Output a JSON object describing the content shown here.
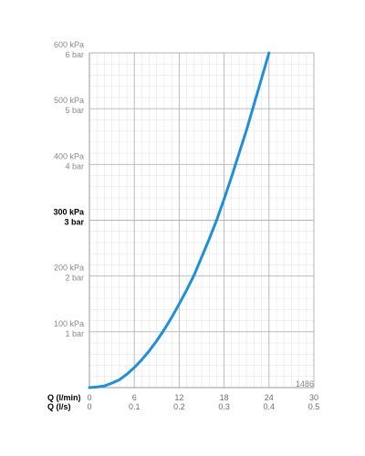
{
  "chart_data": {
    "type": "line",
    "title": "",
    "code": "1486",
    "x_axis": {
      "label": "Q (l/min)",
      "ticks": [
        "0",
        "6",
        "12",
        "18",
        "24",
        "30"
      ],
      "range": [
        0,
        30
      ]
    },
    "x_axis_secondary": {
      "label": "Q (l/s)",
      "ticks": [
        "0",
        "0.1",
        "0.2",
        "0.3",
        "0.4",
        "0.5"
      ]
    },
    "y_axis": {
      "unit": "kPa",
      "range": [
        0,
        600
      ],
      "labels": [
        {
          "value": 600,
          "kpa": "600 kPa",
          "bar": "6 bar",
          "bold": false
        },
        {
          "value": 500,
          "kpa": "500 kPa",
          "bar": "5 bar",
          "bold": false
        },
        {
          "value": 400,
          "kpa": "400 kPa",
          "bar": "4 bar",
          "bold": false
        },
        {
          "value": 300,
          "kpa": "300 kPa",
          "bar": "3 bar",
          "bold": true
        },
        {
          "value": 200,
          "kpa": "200 kPa",
          "bar": "2 bar",
          "bold": false
        },
        {
          "value": 100,
          "kpa": "100 kPa",
          "bar": "1 bar",
          "bold": false
        }
      ]
    },
    "grid": true,
    "series": [
      {
        "color": "#1f8fd6",
        "points": [
          [
            0,
            0
          ],
          [
            1,
            1
          ],
          [
            2,
            3
          ],
          [
            3,
            8
          ],
          [
            4,
            14
          ],
          [
            5,
            24
          ],
          [
            6,
            36
          ],
          [
            7,
            50
          ],
          [
            8,
            66
          ],
          [
            9,
            84
          ],
          [
            10,
            104
          ],
          [
            11,
            126
          ],
          [
            12,
            150
          ],
          [
            13,
            175
          ],
          [
            14,
            202
          ],
          [
            15,
            234
          ],
          [
            16,
            266
          ],
          [
            17,
            300
          ],
          [
            18,
            338
          ],
          [
            19,
            378
          ],
          [
            20,
            420
          ],
          [
            21,
            462
          ],
          [
            22,
            508
          ],
          [
            23,
            554
          ],
          [
            24,
            600
          ]
        ]
      }
    ]
  }
}
